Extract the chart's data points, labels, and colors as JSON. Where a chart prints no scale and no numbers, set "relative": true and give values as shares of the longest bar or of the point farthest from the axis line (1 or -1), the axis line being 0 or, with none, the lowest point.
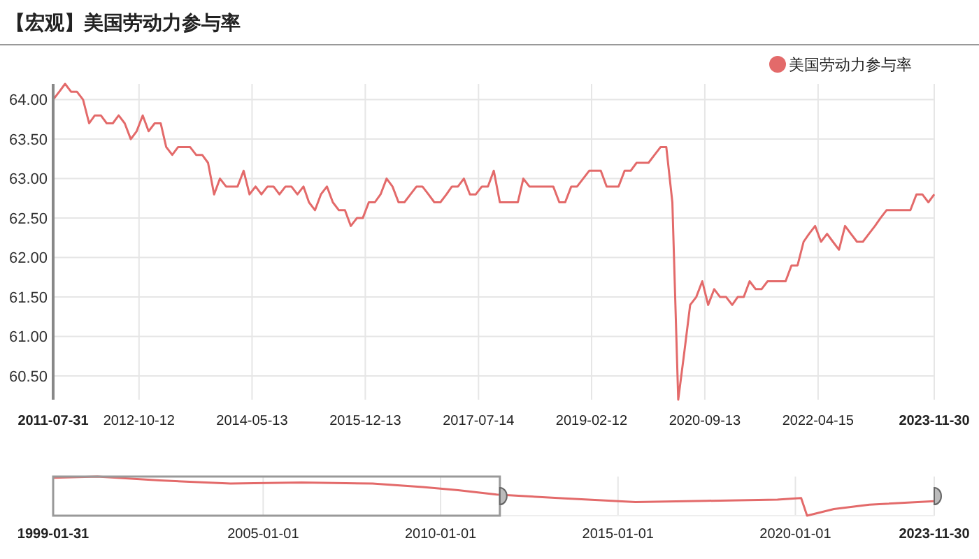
{
  "chart_data": [
    {
      "type": "line",
      "title": "【宏观】美国劳动力参与率",
      "legend": "top right",
      "grid": true,
      "marker": "none",
      "x": [
        "2011-07-31",
        "2011-08-31",
        "2011-09-30",
        "2011-10-31",
        "2011-11-30",
        "2011-12-31",
        "2012-01-31",
        "2012-02-29",
        "2012-03-31",
        "2012-04-30",
        "2012-05-31",
        "2012-06-30",
        "2012-07-31",
        "2012-08-31",
        "2012-09-30",
        "2012-10-31",
        "2012-11-30",
        "2012-12-31",
        "2013-01-31",
        "2013-02-28",
        "2013-03-31",
        "2013-04-30",
        "2013-05-31",
        "2013-06-30",
        "2013-07-31",
        "2013-08-31",
        "2013-09-30",
        "2013-10-31",
        "2013-11-30",
        "2013-12-31",
        "2014-01-31",
        "2014-02-28",
        "2014-03-31",
        "2014-04-30",
        "2014-05-31",
        "2014-06-30",
        "2014-07-31",
        "2014-08-31",
        "2014-09-30",
        "2014-10-31",
        "2014-11-30",
        "2014-12-31",
        "2015-01-31",
        "2015-02-28",
        "2015-03-31",
        "2015-04-30",
        "2015-05-31",
        "2015-06-30",
        "2015-07-31",
        "2015-08-31",
        "2015-09-30",
        "2015-10-31",
        "2015-11-30",
        "2015-12-31",
        "2016-01-31",
        "2016-02-29",
        "2016-03-31",
        "2016-04-30",
        "2016-05-31",
        "2016-06-30",
        "2016-07-31",
        "2016-08-31",
        "2016-09-30",
        "2016-10-31",
        "2016-11-30",
        "2016-12-31",
        "2017-01-31",
        "2017-02-28",
        "2017-03-31",
        "2017-04-30",
        "2017-05-31",
        "2017-06-30",
        "2017-07-31",
        "2017-08-31",
        "2017-09-30",
        "2017-10-31",
        "2017-11-30",
        "2017-12-31",
        "2018-01-31",
        "2018-02-28",
        "2018-03-31",
        "2018-04-30",
        "2018-05-31",
        "2018-06-30",
        "2018-07-31",
        "2018-08-31",
        "2018-09-30",
        "2018-10-31",
        "2018-11-30",
        "2018-12-31",
        "2019-01-31",
        "2019-02-28",
        "2019-03-31",
        "2019-04-30",
        "2019-05-31",
        "2019-06-30",
        "2019-07-31",
        "2019-08-31",
        "2019-09-30",
        "2019-10-31",
        "2019-11-30",
        "2019-12-31",
        "2020-01-31",
        "2020-02-29",
        "2020-03-31",
        "2020-04-30",
        "2020-05-31",
        "2020-06-30",
        "2020-07-31",
        "2020-08-31",
        "2020-09-30",
        "2020-10-31",
        "2020-11-30",
        "2020-12-31",
        "2021-01-31",
        "2021-02-28",
        "2021-03-31",
        "2021-04-30",
        "2021-05-31",
        "2021-06-30",
        "2021-07-31",
        "2021-08-31",
        "2021-09-30",
        "2021-10-31",
        "2021-11-30",
        "2021-12-31",
        "2022-01-31",
        "2022-02-28",
        "2022-03-31",
        "2022-04-30",
        "2022-05-31",
        "2022-06-30",
        "2022-07-31",
        "2022-08-31",
        "2022-09-30",
        "2022-10-31",
        "2022-11-30",
        "2022-12-31",
        "2023-01-31",
        "2023-02-28",
        "2023-03-31",
        "2023-04-30",
        "2023-05-31",
        "2023-06-30",
        "2023-07-31",
        "2023-08-31",
        "2023-09-30",
        "2023-10-31",
        "2023-11-30"
      ],
      "series": [
        {
          "name": "美国劳动力参与率",
          "color": "#e36a6a",
          "values": [
            64.0,
            64.1,
            64.2,
            64.1,
            64.1,
            64.0,
            63.7,
            63.8,
            63.8,
            63.7,
            63.7,
            63.8,
            63.7,
            63.5,
            63.6,
            63.8,
            63.6,
            63.7,
            63.7,
            63.4,
            63.3,
            63.4,
            63.4,
            63.4,
            63.3,
            63.3,
            63.2,
            62.8,
            63.0,
            62.9,
            62.9,
            62.9,
            63.1,
            62.8,
            62.9,
            62.8,
            62.9,
            62.9,
            62.8,
            62.9,
            62.9,
            62.8,
            62.9,
            62.7,
            62.6,
            62.8,
            62.9,
            62.7,
            62.6,
            62.6,
            62.4,
            62.5,
            62.5,
            62.7,
            62.7,
            62.8,
            63.0,
            62.9,
            62.7,
            62.7,
            62.8,
            62.9,
            62.9,
            62.8,
            62.7,
            62.7,
            62.8,
            62.9,
            62.9,
            63.0,
            62.8,
            62.8,
            62.9,
            62.9,
            63.1,
            62.7,
            62.7,
            62.7,
            62.7,
            63.0,
            62.9,
            62.9,
            62.9,
            62.9,
            62.9,
            62.7,
            62.7,
            62.9,
            62.9,
            63.0,
            63.1,
            63.1,
            63.1,
            62.9,
            62.9,
            62.9,
            63.1,
            63.1,
            63.2,
            63.2,
            63.2,
            63.3,
            63.4,
            63.4,
            62.7,
            60.2,
            60.8,
            61.4,
            61.5,
            61.7,
            61.4,
            61.6,
            61.5,
            61.5,
            61.4,
            61.5,
            61.5,
            61.7,
            61.6,
            61.6,
            61.7,
            61.7,
            61.7,
            61.7,
            61.9,
            61.9,
            62.2,
            62.3,
            62.4,
            62.2,
            62.3,
            62.2,
            62.1,
            62.4,
            62.3,
            62.2,
            62.2,
            62.3,
            62.4,
            62.5,
            62.6,
            62.6,
            62.6,
            62.6,
            62.6,
            62.8,
            62.8,
            62.7,
            62.8
          ]
        }
      ],
      "xlim": [
        "2011-07-31",
        "2023-11-30"
      ],
      "xticks": [
        "2011-07-31",
        "2012-10-12",
        "2014-05-13",
        "2015-12-13",
        "2017-07-14",
        "2019-02-12",
        "2020-09-13",
        "2022-04-15",
        "2023-11-30"
      ],
      "ylim": [
        60.2,
        64.2
      ],
      "yticks": [
        {
          "value": 60.5,
          "label": "60.50"
        },
        {
          "value": 61,
          "label": "61.00"
        },
        {
          "value": 61.5,
          "label": "61.50"
        },
        {
          "value": 62,
          "label": "62.00"
        },
        {
          "value": 62.5,
          "label": "62.50"
        },
        {
          "value": 63,
          "label": "63.00"
        },
        {
          "value": 63.5,
          "label": "63.50"
        },
        {
          "value": 64,
          "label": "64.00"
        }
      ]
    },
    {
      "type": "line",
      "relative": true,
      "grid": "x",
      "marker": "none",
      "tick_labels": "x",
      "x": [
        "1999-01-31",
        "2000-04-30",
        "2002-01-31",
        "2004-01-31",
        "2006-01-31",
        "2008-01-31",
        "2009-06-30",
        "2010-06-30",
        "2011-07-31",
        "2013-06-30",
        "2015-06-30",
        "2017-06-30",
        "2019-06-30",
        "2020-02-29",
        "2020-04-30",
        "2021-01-31",
        "2022-01-31",
        "2023-11-30"
      ],
      "series": [
        {
          "color": "#e36a6a",
          "values": [
            0.97,
            1,
            0.9,
            0.82,
            0.85,
            0.82,
            0.73,
            0.65,
            0.54,
            0.44,
            0.35,
            0.38,
            0.41,
            0.45,
            0,
            0.17,
            0.28,
            0.37
          ]
        }
      ],
      "xlim": [
        "1999-01-31",
        "2023-11-30"
      ],
      "xticks": [
        "1999-01-31",
        "2005-01-01",
        "2010-01-01",
        "2015-01-01",
        "2020-01-01",
        "2023-11-30"
      ]
    }
  ]
}
